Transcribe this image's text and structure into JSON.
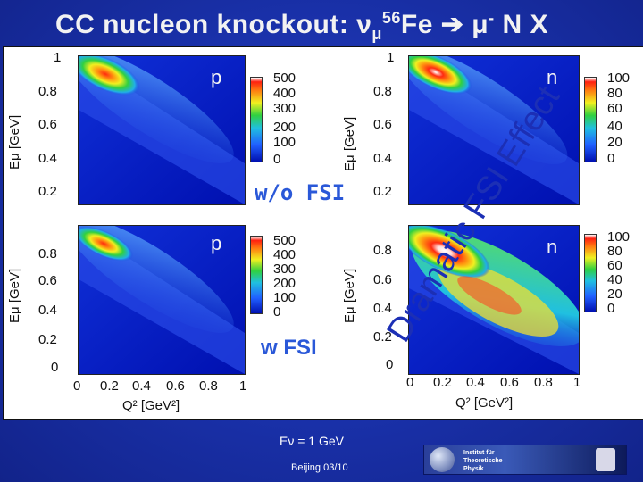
{
  "title": {
    "prefix": "CC nucleon knockout:  ",
    "nu": "ν",
    "mu_sub": "μ",
    "iso": "56",
    "target": "Fe ",
    "arrow": "➔",
    "mu": " μ",
    "minus": "-",
    "rest": " N X"
  },
  "chart_data": [
    {
      "type": "heatmap",
      "panel": "top-left",
      "particle": "p",
      "condition": "w/o FSI",
      "ylabel": "Eμ [GeV]",
      "yticks": [
        "1",
        "0.8",
        "0.6",
        "0.4",
        "0.2"
      ],
      "colorbar": [
        "500",
        "400",
        "300",
        "200",
        "100",
        "0"
      ],
      "colorscale_max": 500
    },
    {
      "type": "heatmap",
      "panel": "top-right",
      "particle": "n",
      "condition": "w/o FSI",
      "ylabel": "Eμ [GeV]",
      "yticks": [
        "1",
        "0.8",
        "0.6",
        "0.4",
        "0.2"
      ],
      "colorbar": [
        "100",
        "80",
        "60",
        "40",
        "20",
        "0"
      ],
      "colorscale_max": 100
    },
    {
      "type": "heatmap",
      "panel": "bottom-left",
      "particle": "p",
      "condition": "w FSI",
      "ylabel": "Eμ [GeV]",
      "yticks": [
        "0.8",
        "0.6",
        "0.4",
        "0.2",
        "0"
      ],
      "xlabel": "Q² [GeV²]",
      "xticks": [
        "0",
        "0.2",
        "0.4",
        "0.6",
        "0.8",
        "1"
      ],
      "colorbar": [
        "500",
        "400",
        "300",
        "200",
        "100",
        "0"
      ],
      "colorscale_max": 500
    },
    {
      "type": "heatmap",
      "panel": "bottom-right",
      "particle": "n",
      "condition": "w FSI",
      "ylabel": "Eμ [GeV]",
      "yticks": [
        "0.8",
        "0.6",
        "0.4",
        "0.2",
        "0"
      ],
      "xlabel": "Q² [GeV²]",
      "xticks": [
        "0",
        "0.2",
        "0.4",
        "0.6",
        "0.8",
        "1"
      ],
      "colorbar": [
        "100",
        "80",
        "60",
        "40",
        "20",
        "0"
      ],
      "colorscale_max": 100
    }
  ],
  "labels": {
    "wo_fsi": "w/o FSI",
    "w_fsi": "w FSI",
    "dramatic": "Dramatic FSI Effect",
    "enu": "Eν = 1 GeV",
    "footer": "Beijing 03/10",
    "institute": "Institut für Theoretische Physik"
  },
  "colors": {
    "background": "#1930a8",
    "annotation": "#2a58d8",
    "diag": "#1c2fb5"
  }
}
